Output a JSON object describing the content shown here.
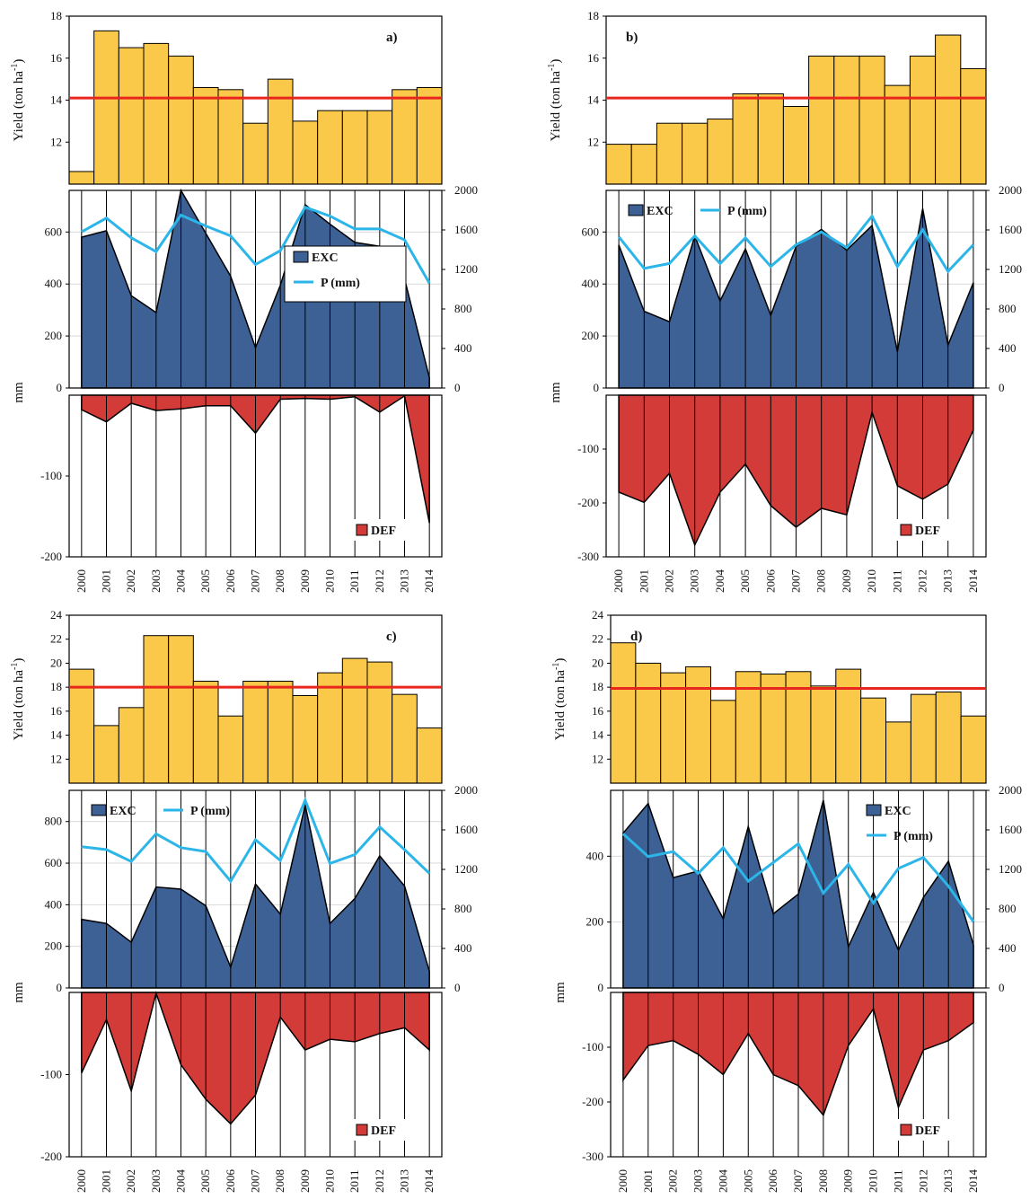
{
  "colors": {
    "yield_bar": "#FBC94A",
    "mean_line": "#E8261E",
    "exc_fill": "#3D6194",
    "precip_line": "#2BB5E8",
    "def_fill": "#D23B38",
    "grid": "#d9d9d9"
  },
  "chart_data": [
    {
      "panel": "a)",
      "type": "bar",
      "years": [
        "2000",
        "2001",
        "2002",
        "2003",
        "2004",
        "2005",
        "2006",
        "2007",
        "2008",
        "2009",
        "2010",
        "2011",
        "2012",
        "2013",
        "2014"
      ],
      "yield": {
        "ylabel": "Yield (ton ha-1)",
        "ylim": [
          10,
          18
        ],
        "ticks": [
          "12",
          "14",
          "16",
          "18"
        ],
        "values": [
          10.6,
          17.3,
          16.5,
          16.7,
          16.1,
          14.6,
          14.5,
          12.9,
          15.0,
          13.0,
          13.5,
          13.5,
          13.5,
          14.5,
          14.6
        ],
        "mean": 14.1
      },
      "exc": {
        "ylabel": "mm",
        "ylim_left": [
          0,
          760
        ],
        "left_ticks": [
          "0",
          "200",
          "400",
          "600"
        ],
        "ylim_right": [
          0,
          2000
        ],
        "right_ticks": [
          "0",
          "400",
          "800",
          "1200",
          "1600",
          "2000"
        ],
        "exc_values": [
          580,
          605,
          355,
          290,
          760,
          595,
          430,
          155,
          395,
          705,
          630,
          560,
          545,
          420,
          40
        ],
        "p_values": [
          1580,
          1720,
          1520,
          1380,
          1750,
          1640,
          1540,
          1250,
          1390,
          1830,
          1740,
          1610,
          1610,
          1500,
          1060
        ]
      },
      "def": {
        "ylim": [
          -200,
          0
        ],
        "ticks": [
          "-100",
          "-200"
        ],
        "values": [
          -18,
          -33,
          -10,
          -19,
          -17,
          -13,
          -13,
          -47,
          -5,
          -4,
          -5,
          -2,
          -21,
          -1,
          -158
        ]
      },
      "legend": {
        "exc": "EXC",
        "p": "P (mm)",
        "def": "DEF"
      }
    },
    {
      "panel": "b)",
      "type": "bar",
      "years": [
        "2000",
        "2001",
        "2002",
        "2003",
        "2004",
        "2005",
        "2006",
        "2007",
        "2008",
        "2009",
        "2010",
        "2011",
        "2012",
        "2013",
        "2014"
      ],
      "yield": {
        "ylabel": "Yield (ton ha-1)",
        "ylim": [
          10,
          18
        ],
        "ticks": [
          "12",
          "14",
          "16",
          "18"
        ],
        "values": [
          11.9,
          11.9,
          12.9,
          12.9,
          13.1,
          14.3,
          14.3,
          13.7,
          16.1,
          16.1,
          16.1,
          14.7,
          16.1,
          17.1,
          15.5
        ],
        "mean": 14.1
      },
      "exc": {
        "ylabel": "mm",
        "ylim_left": [
          0,
          760
        ],
        "left_ticks": [
          "0",
          "200",
          "400",
          "600"
        ],
        "ylim_right": [
          0,
          2000
        ],
        "right_ticks": [
          "0",
          "400",
          "800",
          "1200",
          "1600",
          "2000"
        ],
        "exc_values": [
          550,
          295,
          255,
          585,
          335,
          535,
          280,
          545,
          610,
          530,
          625,
          140,
          690,
          165,
          405
        ],
        "p_values": [
          1530,
          1210,
          1260,
          1540,
          1260,
          1520,
          1230,
          1450,
          1580,
          1420,
          1740,
          1230,
          1600,
          1180,
          1450
        ]
      },
      "def": {
        "ylim": [
          -300,
          0
        ],
        "ticks": [
          "-100",
          "-200",
          "-300"
        ],
        "values": [
          -180,
          -199,
          -145,
          -278,
          -180,
          -128,
          -205,
          -245,
          -210,
          -222,
          -32,
          -168,
          -193,
          -165,
          -65
        ]
      },
      "legend": {
        "exc": "EXC",
        "p": "P (mm)",
        "def": "DEF"
      }
    },
    {
      "panel": "c)",
      "type": "bar",
      "years": [
        "2000",
        "2001",
        "2002",
        "2003",
        "2004",
        "2005",
        "2006",
        "2007",
        "2008",
        "2009",
        "2010",
        "2011",
        "2012",
        "2013",
        "2014"
      ],
      "yield": {
        "ylabel": "Yield (ton ha-1)",
        "ylim": [
          10,
          24
        ],
        "ticks": [
          "12",
          "14",
          "16",
          "18",
          "20",
          "22",
          "24"
        ],
        "values": [
          19.5,
          14.8,
          16.3,
          22.3,
          22.3,
          18.5,
          15.6,
          18.5,
          18.5,
          17.3,
          19.2,
          20.4,
          20.1,
          17.4,
          14.6
        ],
        "mean": 18.0
      },
      "exc": {
        "ylabel": "mm",
        "ylim_left": [
          0,
          950
        ],
        "left_ticks": [
          "0",
          "200",
          "400",
          "600",
          "800"
        ],
        "ylim_right": [
          0,
          2000
        ],
        "right_ticks": [
          "0",
          "400",
          "800",
          "1200",
          "1600",
          "2000"
        ],
        "exc_values": [
          330,
          310,
          220,
          485,
          475,
          395,
          100,
          500,
          355,
          880,
          310,
          430,
          635,
          490,
          80
        ],
        "p_values": [
          1430,
          1400,
          1280,
          1560,
          1420,
          1380,
          1080,
          1500,
          1290,
          1900,
          1260,
          1350,
          1630,
          1400,
          1160
        ]
      },
      "def": {
        "ylim": [
          -200,
          0
        ],
        "ticks": [
          "-100",
          "-200"
        ],
        "values": [
          -98,
          -33,
          -120,
          -1,
          -88,
          -130,
          -160,
          -125,
          -30,
          -70,
          -57,
          -60,
          -50,
          -43,
          -70
        ]
      },
      "legend": {
        "exc": "EXC",
        "p": "P (mm)",
        "def": "DEF"
      }
    },
    {
      "panel": "d)",
      "type": "bar",
      "years": [
        "2000",
        "2001",
        "2002",
        "2003",
        "2004",
        "2005",
        "2006",
        "2007",
        "2008",
        "2009",
        "2010",
        "2011",
        "2012",
        "2013",
        "2014"
      ],
      "yield": {
        "ylabel": "Yield (ton ha-1)",
        "ylim": [
          10,
          24
        ],
        "ticks": [
          "12",
          "14",
          "16",
          "18",
          "20",
          "22",
          "24"
        ],
        "values": [
          21.7,
          20.0,
          19.2,
          19.7,
          16.9,
          19.3,
          19.1,
          19.3,
          18.1,
          19.5,
          17.1,
          15.1,
          17.4,
          17.6,
          15.6
        ],
        "mean": 17.9
      },
      "exc": {
        "ylabel": "mm",
        "ylim_left": [
          0,
          600
        ],
        "left_ticks": [
          "0",
          "200",
          "400"
        ],
        "ylim_right": [
          0,
          2000
        ],
        "right_ticks": [
          "0",
          "400",
          "800",
          "1200",
          "1600",
          "2000"
        ],
        "exc_values": [
          470,
          560,
          335,
          355,
          210,
          490,
          225,
          285,
          570,
          125,
          290,
          115,
          275,
          385,
          130
        ],
        "p_values": [
          1560,
          1330,
          1380,
          1160,
          1420,
          1080,
          1270,
          1460,
          960,
          1250,
          860,
          1210,
          1320,
          1030,
          670
        ]
      },
      "def": {
        "ylim": [
          -300,
          0
        ],
        "ticks": [
          "-100",
          "-200",
          "-300"
        ],
        "values": [
          -160,
          -97,
          -88,
          -113,
          -150,
          -75,
          -150,
          -170,
          -224,
          -97,
          -30,
          -210,
          -105,
          -88,
          -55
        ]
      },
      "legend": {
        "exc": "EXC",
        "p": "P (mm)",
        "def": "DEF"
      }
    }
  ]
}
